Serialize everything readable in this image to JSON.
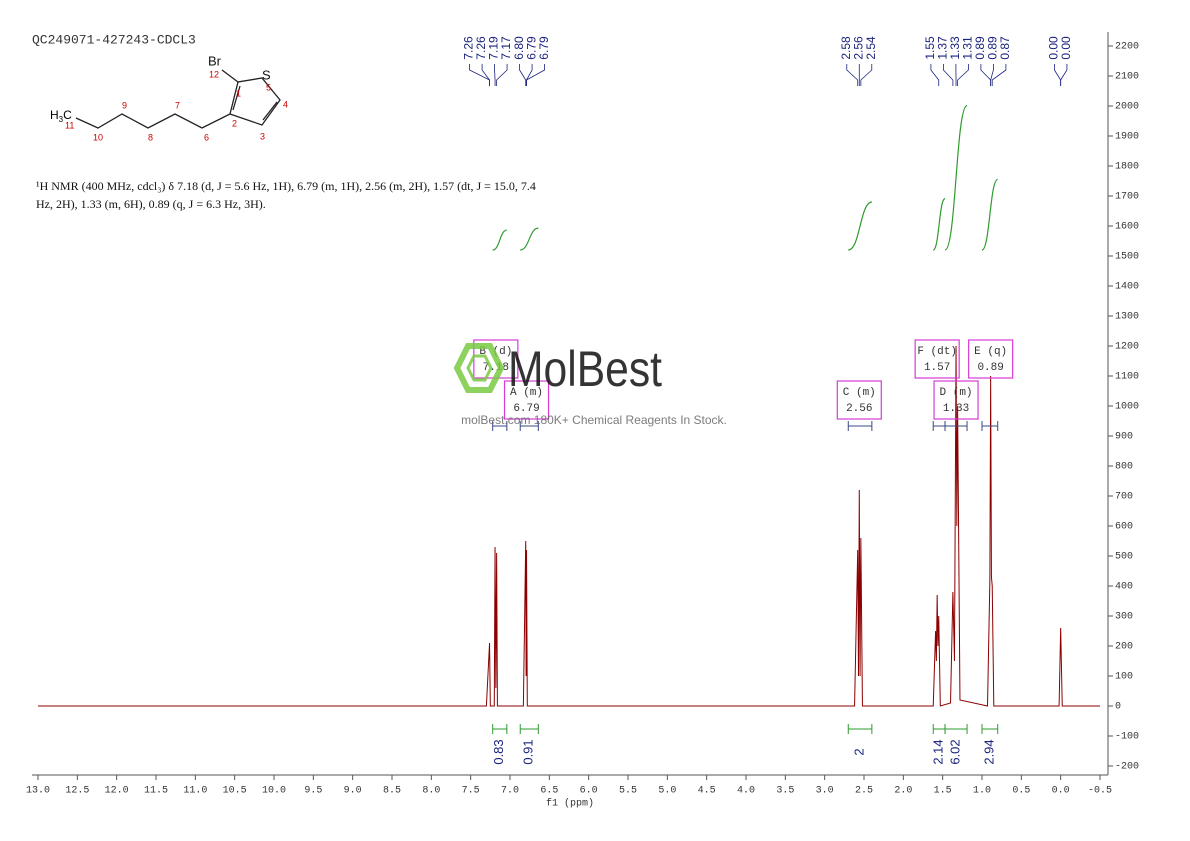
{
  "chart_data": {
    "type": "line",
    "title": "QC249071-427243-CDCL3",
    "x_label": "f1 (ppm)",
    "description": [
      "¹H NMR (400 MHz, cdcl₃) δ 7.18 (d, J = 5.6 Hz, 1H), 6.79 (m, 1H), 2.56 (m, 2H), 1.57 (dt, J = 15.0, 7.4",
      "Hz, 2H), 1.33 (m, 6H), 0.89 (q, J = 6.3 Hz, 3H)."
    ],
    "watermark": {
      "brand": "MolBest",
      "tagline": "molBest.com 180K+ Chemical Reagents In Stock."
    },
    "structure": {
      "methyl": [
        "H",
        "3",
        "C"
      ],
      "labels": [
        "Br",
        "S",
        "12",
        "1",
        "5",
        "4",
        "3",
        "2",
        "6",
        "7",
        "8",
        "9",
        "10",
        "11"
      ]
    },
    "xlim": [
      13.0,
      -0.5
    ],
    "xticks": [
      {
        "value": 13,
        "label": "13.0"
      },
      12.5,
      {
        "value": 12,
        "label": "12.0"
      },
      11.5,
      {
        "value": 11,
        "label": "11.0"
      },
      10.5,
      {
        "value": 10,
        "label": "10.0"
      },
      9.5,
      {
        "value": 9,
        "label": "9.0"
      },
      8.5,
      {
        "value": 8,
        "label": "8.0"
      },
      7.5,
      {
        "value": 7,
        "label": "7.0"
      },
      6.5,
      {
        "value": 6,
        "label": "6.0"
      },
      5.5,
      {
        "value": 5,
        "label": "5.0"
      },
      4.5,
      {
        "value": 4,
        "label": "4.0"
      },
      3.5,
      {
        "value": 3,
        "label": "3.0"
      },
      2.5,
      {
        "value": 2,
        "label": "2.0"
      },
      1.5,
      {
        "value": 1,
        "label": "1.0"
      },
      0.5,
      {
        "value": 0,
        "label": "0.0"
      },
      -0.5
    ],
    "ylim": [
      -230,
      2220
    ],
    "yticks": [
      -200,
      -100,
      0,
      100,
      200,
      300,
      400,
      500,
      600,
      700,
      800,
      900,
      1000,
      1100,
      1200,
      1300,
      1400,
      1500,
      1600,
      1700,
      1800,
      1900,
      2000,
      2100,
      2200
    ],
    "series": [
      {
        "color": "#8b0000",
        "x": [
          13.0,
          7.3,
          7.26,
          7.25,
          7.2,
          7.19,
          7.18,
          7.17,
          7.16,
          6.83,
          6.8,
          6.795,
          6.79,
          6.78,
          2.62,
          2.58,
          2.57,
          2.56,
          2.55,
          2.54,
          2.52,
          1.62,
          1.59,
          1.58,
          1.57,
          1.56,
          1.55,
          1.53,
          1.4,
          1.37,
          1.35,
          1.33,
          1.32,
          1.31,
          1.28,
          0.93,
          0.9,
          0.89,
          0.88,
          0.87,
          0.85,
          0.02,
          0.0,
          -0.02,
          -0.5
        ],
        "values": [
          0,
          0,
          210,
          0,
          0,
          530,
          60,
          510,
          0,
          0,
          550,
          100,
          520,
          0,
          0,
          520,
          100,
          720,
          100,
          560,
          0,
          0,
          250,
          150,
          370,
          200,
          300,
          0,
          10,
          380,
          150,
          1200,
          600,
          1000,
          20,
          0,
          420,
          1100,
          430,
          400,
          0,
          0,
          260,
          0,
          0
        ]
      }
    ],
    "peak_labels": [
      "7.26",
      "7.26",
      "7.19",
      "7.17",
      "6.80",
      "6.79",
      "6.79",
      "2.58",
      "2.56",
      "2.54",
      "1.55",
      "1.37",
      "1.33",
      "1.31",
      "0.89",
      "0.89",
      "0.87",
      "0.00",
      "0.00"
    ],
    "multiplets": [
      {
        "label": "A (m)",
        "shift": 6.79,
        "range": [
          6.87,
          6.64
        ],
        "integral": 0.91
      },
      {
        "label": "B (d)",
        "shift": 7.18,
        "range": [
          7.22,
          7.04
        ],
        "integral": 0.83
      },
      {
        "label": "C (m)",
        "shift": 2.56,
        "range": [
          2.7,
          2.4
        ],
        "integral": 2.0
      },
      {
        "label": "D (m)",
        "shift": 1.33,
        "range": [
          1.47,
          1.19
        ],
        "integral": 6.02
      },
      {
        "label": "E (q)",
        "shift": 0.89,
        "range": [
          1.0,
          0.8
        ],
        "integral": 2.94
      },
      {
        "label": "F (dt)",
        "shift": 1.57,
        "range": [
          1.62,
          1.47
        ],
        "integral": 2.14
      }
    ]
  }
}
